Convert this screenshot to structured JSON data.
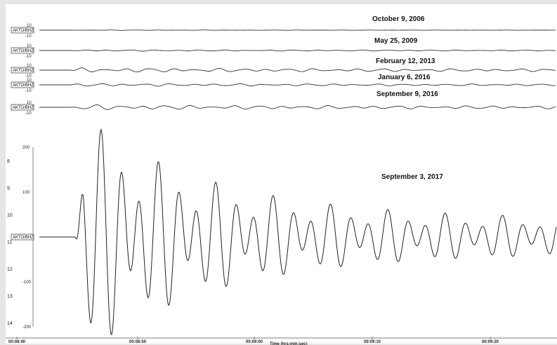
{
  "chart_data": {
    "type": "line",
    "station": "AKTO/BHZ",
    "x_ticks": [
      "00:08:40",
      "00:08:50",
      "00:09:00",
      "00:09:10",
      "00:09:20"
    ],
    "xlabel": "Time (hrs:min:sec)",
    "series": [
      {
        "name": "October 9, 2006",
        "amplitude": 0.05,
        "yticks": [
          "10",
          "-10"
        ]
      },
      {
        "name": "May 25, 2009",
        "amplitude": 0.15,
        "yticks": [
          "10",
          "-10"
        ]
      },
      {
        "name": "February 12, 2013",
        "amplitude": 0.45,
        "yticks": [
          "10",
          "-10"
        ]
      },
      {
        "name": "January 6, 2016",
        "amplitude": 0.3,
        "yticks": [
          "10",
          "-10"
        ]
      },
      {
        "name": "September 9, 2016",
        "amplitude": 0.5,
        "yticks": [
          "10",
          "-10"
        ]
      },
      {
        "name": "September 3, 2017",
        "amplitude": 1.0,
        "yticks": [
          "200",
          "100",
          "0",
          "-100",
          "-200"
        ]
      }
    ],
    "row_labels": [
      "8",
      "9",
      "10",
      "11",
      "12",
      "13",
      "14"
    ]
  }
}
